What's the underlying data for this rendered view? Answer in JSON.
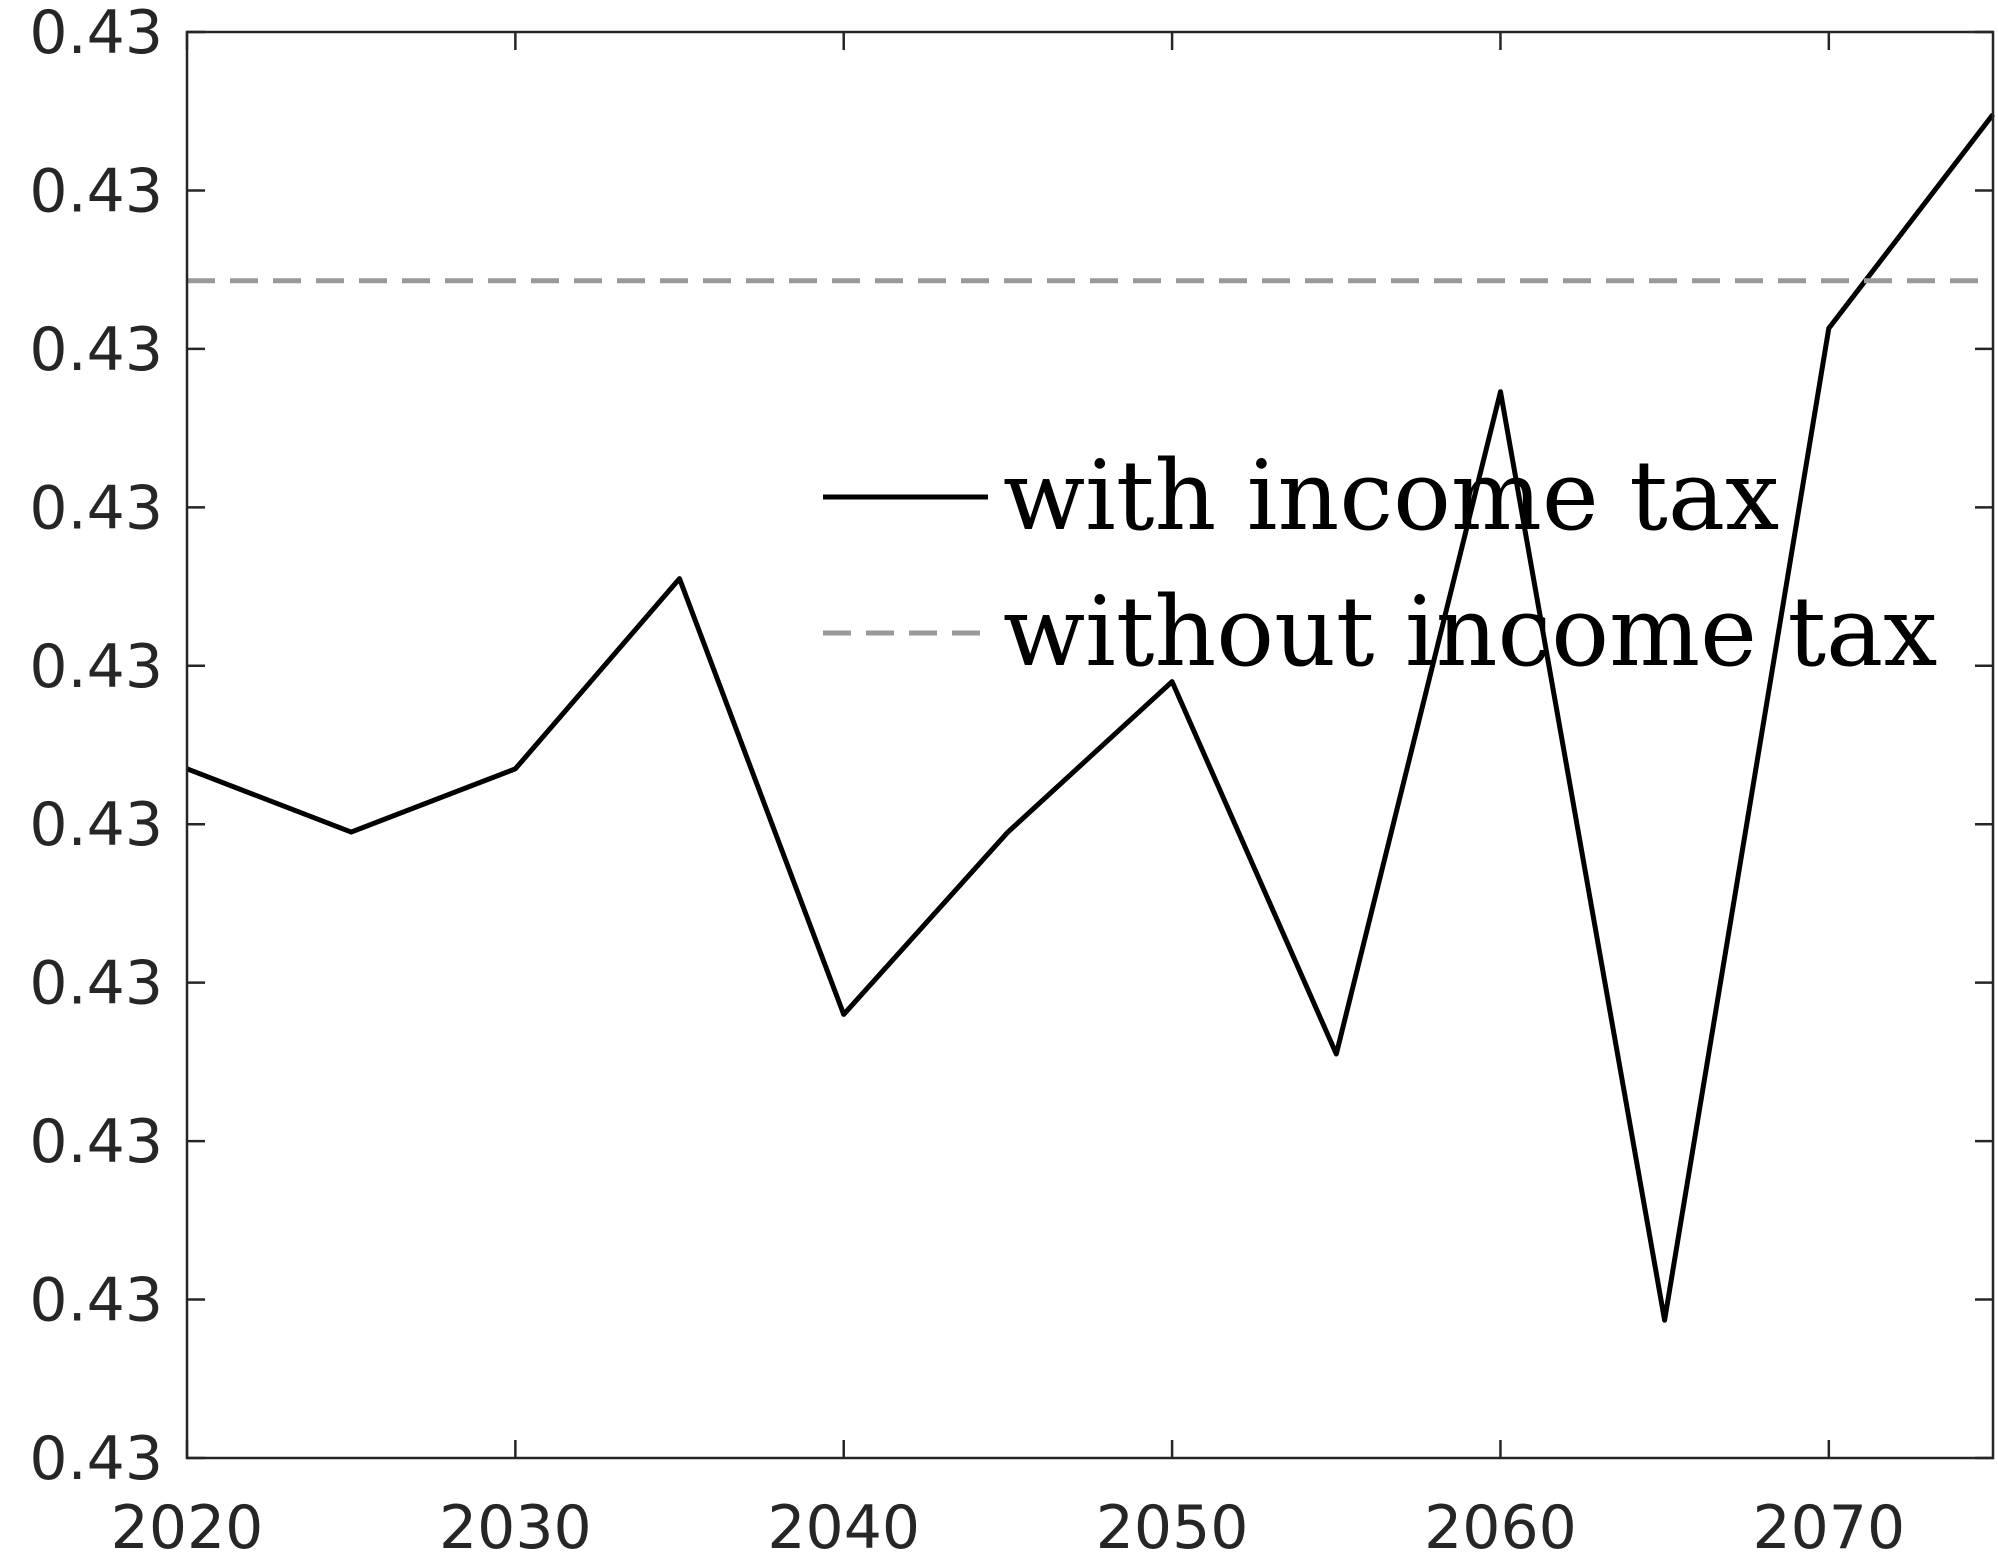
{
  "chart_data": {
    "type": "line",
    "title": "",
    "xlabel": "",
    "ylabel": "",
    "x_ticks": [
      "2020",
      "2030",
      "2040",
      "2050",
      "2060",
      "2070"
    ],
    "y_tick_labels": [
      "0.43",
      "0.43",
      "0.43",
      "0.43",
      "0.43",
      "0.43",
      "0.43",
      "0.43",
      "0.43",
      "0.43"
    ],
    "xlim": [
      2020,
      2075
    ],
    "ylim": [
      0,
      9
    ],
    "grid": false,
    "legend_position": "center-right",
    "series": [
      {
        "name": "with income tax",
        "color": "#000000",
        "style": "solid",
        "x": [
          2020,
          2025,
          2030,
          2035,
          2040,
          2045,
          2050,
          2055,
          2060,
          2065,
          2070,
          2075
        ],
        "y": [
          4.35,
          3.95,
          4.35,
          5.55,
          2.8,
          3.95,
          4.9,
          2.55,
          6.73,
          0.87,
          7.13,
          8.48
        ]
      },
      {
        "name": "without income tax",
        "color": "#999999",
        "style": "dashed",
        "x": [
          2020,
          2075
        ],
        "y": [
          7.43,
          7.43
        ]
      }
    ]
  }
}
